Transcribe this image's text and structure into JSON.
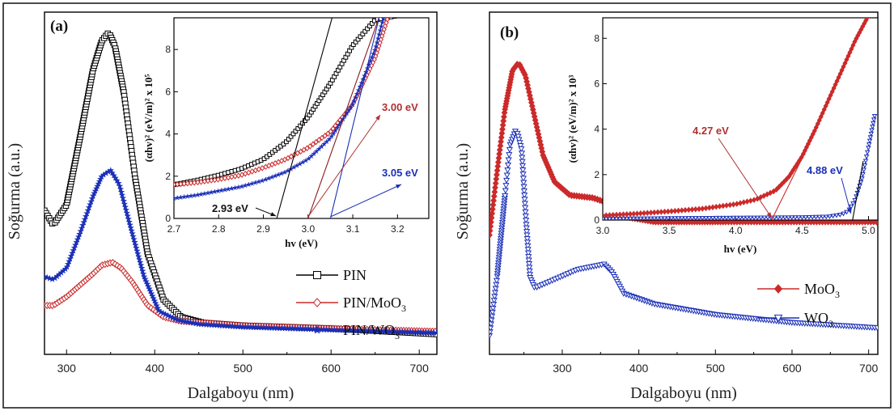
{
  "chart_data": [
    {
      "panel": "(a)",
      "type": "line",
      "xlabel": "Dalgaboyu (nm)",
      "ylabel": "Soğurma (a.u.)",
      "xlim": [
        275,
        720
      ],
      "xticks": [
        300,
        400,
        500,
        600,
        700
      ],
      "yticks": [],
      "series": [
        {
          "name": "PIN",
          "color": "#000000",
          "marker": "square-open",
          "x": [
            275,
            285,
            300,
            315,
            330,
            340,
            348,
            355,
            365,
            378,
            392,
            410,
            430,
            455,
            500,
            600,
            720
          ],
          "y": [
            0.43,
            0.38,
            0.45,
            0.68,
            0.92,
            1.02,
            1.05,
            1.0,
            0.84,
            0.54,
            0.28,
            0.12,
            0.06,
            0.04,
            0.03,
            0.02,
            0.0
          ]
        },
        {
          "name": "PIN/MoO3",
          "color": "#cc2a2a",
          "marker": "diamond-open",
          "x": [
            275,
            285,
            300,
            315,
            330,
            340,
            352,
            362,
            375,
            392,
            410,
            430,
            455,
            500,
            600,
            720
          ],
          "y": [
            0.1,
            0.1,
            0.13,
            0.17,
            0.21,
            0.24,
            0.25,
            0.23,
            0.18,
            0.1,
            0.06,
            0.045,
            0.04,
            0.03,
            0.02,
            0.01
          ]
        },
        {
          "name": "PIN/WO3",
          "color": "#1a2fb8",
          "marker": "star",
          "x": [
            275,
            285,
            300,
            315,
            330,
            340,
            350,
            360,
            372,
            388,
            405,
            425,
            450,
            500,
            600,
            720
          ],
          "y": [
            0.2,
            0.19,
            0.23,
            0.35,
            0.48,
            0.55,
            0.57,
            0.52,
            0.38,
            0.2,
            0.08,
            0.05,
            0.035,
            0.025,
            0.015,
            0.005
          ]
        }
      ],
      "legend": {
        "placement": "bottom-right",
        "entries": [
          "PIN",
          "PIN/MoO",
          "PIN/WO"
        ],
        "subscript": "3"
      },
      "inset": {
        "type": "line",
        "xlabel": "hv (eV)",
        "ylabel": "(αhv)² (eV/m)² x 10⁵",
        "xlim": [
          2.7,
          3.27
        ],
        "ylim": [
          0,
          9.5
        ],
        "xticks": [
          2.7,
          2.8,
          2.9,
          3.0,
          3.1,
          3.2
        ],
        "yticks": [
          0,
          2,
          4,
          6,
          8
        ],
        "series": [
          {
            "name": "PIN",
            "color": "#000000",
            "x": [
              2.7,
              2.75,
              2.8,
              2.85,
              2.9,
              2.95,
              3.0,
              3.05,
              3.1,
              3.15,
              3.2
            ],
            "y": [
              1.6,
              1.8,
              2.05,
              2.35,
              2.8,
              3.6,
              4.8,
              6.4,
              8.2,
              9.4,
              9.6
            ]
          },
          {
            "name": "PIN/MoO3",
            "color": "#cc2a2a",
            "x": [
              2.7,
              2.75,
              2.8,
              2.85,
              2.9,
              2.95,
              3.0,
              3.05,
              3.1,
              3.15,
              3.18
            ],
            "y": [
              1.6,
              1.7,
              1.85,
              2.05,
              2.4,
              2.8,
              3.35,
              4.1,
              5.4,
              7.6,
              9.6
            ]
          },
          {
            "name": "PIN/WO3",
            "color": "#1a2fb8",
            "x": [
              2.7,
              2.75,
              2.8,
              2.85,
              2.9,
              2.95,
              3.0,
              3.05,
              3.1,
              3.15,
              3.17
            ],
            "y": [
              0.95,
              1.1,
              1.3,
              1.5,
              1.8,
              2.2,
              2.8,
              3.8,
              5.4,
              8.0,
              9.6
            ]
          }
        ],
        "tangents": [
          {
            "color": "#000000",
            "x0": 2.93,
            "x1": 3.055,
            "y1": 9.6
          },
          {
            "color": "#8b1a1a",
            "x0": 3.0,
            "x1": 3.16,
            "y1": 9.6
          },
          {
            "color": "#1a2fb8",
            "x0": 3.05,
            "x1": 3.16,
            "y1": 9.6
          }
        ],
        "annotations": [
          {
            "text": "2.93 eV",
            "color": "#111111",
            "target_x": 2.93
          },
          {
            "text": "3.00 eV",
            "color": "#b03030",
            "target_x": 3.0
          },
          {
            "text": "3.05 eV",
            "color": "#1a2fb8",
            "target_x": 3.05
          }
        ]
      }
    },
    {
      "panel": "(b)",
      "type": "line",
      "xlabel": "Dalgaboyu (nm)",
      "ylabel": "Soğurma (a.u.)",
      "xlim": [
        205,
        712
      ],
      "xticks": [
        300,
        400,
        500,
        600,
        700
      ],
      "yticks": [],
      "series": [
        {
          "name": "MoO3",
          "color": "#cc2a2a",
          "marker": "diamond-filled",
          "x": [
            205,
            215,
            225,
            235,
            243,
            252,
            262,
            275,
            290,
            310,
            340,
            360,
            380,
            420,
            500,
            712
          ],
          "y": [
            0.38,
            0.62,
            0.85,
            1.0,
            1.03,
            0.98,
            0.85,
            0.68,
            0.58,
            0.53,
            0.52,
            0.5,
            0.45,
            0.43,
            0.43,
            0.43
          ]
        },
        {
          "name": "WO3",
          "color": "#1a2fb8",
          "marker": "triangle-down-open",
          "x": [
            205,
            215,
            225,
            232,
            240,
            247,
            253,
            258,
            264,
            280,
            320,
            355,
            365,
            380,
            420,
            500,
            600,
            712
          ],
          "y": [
            0.0,
            0.22,
            0.52,
            0.72,
            0.78,
            0.7,
            0.42,
            0.22,
            0.18,
            0.2,
            0.25,
            0.27,
            0.24,
            0.16,
            0.12,
            0.08,
            0.05,
            0.03
          ]
        }
      ],
      "legend": {
        "placement": "bottom-right",
        "entries": [
          "MoO",
          "WO"
        ],
        "subscript": "3"
      },
      "inset": {
        "type": "line",
        "xlabel": "hv (eV)",
        "ylabel": "(αhv)² (eV/m)² x 10³",
        "xlim": [
          3.0,
          5.07
        ],
        "ylim": [
          0,
          8.9
        ],
        "xticks": [
          3.0,
          3.5,
          4.0,
          4.5,
          5.0
        ],
        "yticks": [
          0,
          2,
          4,
          6,
          8
        ],
        "series": [
          {
            "name": "MoO3",
            "color": "#cc2a2a",
            "x": [
              3.0,
              3.25,
              3.5,
              3.75,
              4.0,
              4.15,
              4.3,
              4.4,
              4.5,
              4.6,
              4.7,
              4.8,
              4.9,
              5.0
            ],
            "y": [
              0.2,
              0.28,
              0.38,
              0.5,
              0.7,
              0.9,
              1.3,
              1.9,
              2.8,
              4.0,
              5.3,
              6.6,
              7.9,
              9.0
            ]
          },
          {
            "name": "WO3",
            "color": "#1a2fb8",
            "x": [
              3.0,
              3.5,
              4.0,
              4.5,
              4.7,
              4.8,
              4.85,
              4.9,
              4.95,
              5.0,
              5.05
            ],
            "y": [
              0.05,
              0.08,
              0.1,
              0.12,
              0.15,
              0.25,
              0.4,
              0.9,
              1.8,
              3.2,
              4.7
            ]
          }
        ],
        "tangents": [
          {
            "color": "#cc2a2a",
            "x0": 4.27,
            "x1": 4.55,
            "y1": 3.3
          },
          {
            "color": "#000000",
            "x0": 4.88,
            "x1": 4.96,
            "y1": 2.6
          }
        ],
        "annotations": [
          {
            "text": "4.27 eV",
            "color": "#b03030",
            "target_x": 4.27
          },
          {
            "text": "4.88 eV",
            "color": "#1a2fb8",
            "target_x": 4.88
          }
        ]
      }
    }
  ]
}
